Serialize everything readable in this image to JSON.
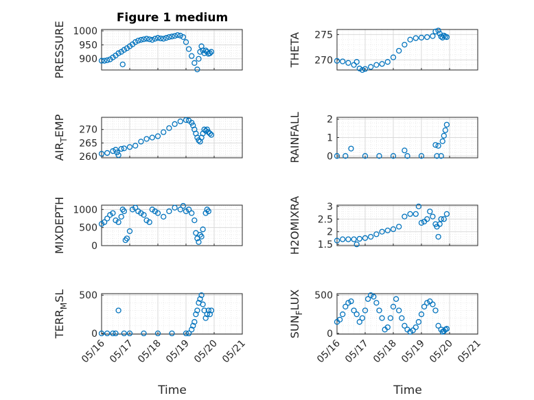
{
  "figure": {
    "title": "Figure 1 medium",
    "marker_color": "#0072bd",
    "x_ticks": [
      "05/16",
      "05/17",
      "05/18",
      "05/19",
      "05/20",
      "05/21"
    ],
    "x_label": "Time"
  },
  "chart_data": [
    {
      "type": "scatter",
      "ylabel": "PRESSURE",
      "title": "Figure 1 medium",
      "xlim": [
        0,
        5
      ],
      "ylim": [
        860,
        1005
      ],
      "yticks": [
        900,
        950,
        1000
      ],
      "grid": true,
      "series": [
        {
          "x": [
            0.0,
            0.1,
            0.2,
            0.3,
            0.4,
            0.5,
            0.6,
            0.7,
            0.75,
            0.8,
            0.9,
            1.0,
            1.1,
            1.2,
            1.3,
            1.4,
            1.5,
            1.6,
            1.7,
            1.8,
            1.9,
            2.0,
            2.1,
            2.2,
            2.3,
            2.4,
            2.5,
            2.6,
            2.7,
            2.8,
            2.9,
            3.0,
            3.1,
            3.2,
            3.3,
            3.4,
            3.45,
            3.5,
            3.55,
            3.6,
            3.65,
            3.7,
            3.75,
            3.8,
            3.85,
            3.9
          ],
          "y": [
            893,
            893,
            895,
            898,
            905,
            912,
            920,
            925,
            880,
            932,
            938,
            945,
            952,
            960,
            965,
            968,
            970,
            972,
            970,
            968,
            972,
            975,
            973,
            972,
            975,
            978,
            980,
            982,
            985,
            983,
            978,
            960,
            935,
            910,
            885,
            862,
            900,
            925,
            945,
            930,
            920,
            930,
            925,
            918,
            920,
            925
          ]
        }
      ]
    },
    {
      "type": "scatter",
      "ylabel": "THETA",
      "xlim": [
        0,
        5
      ],
      "ylim": [
        268,
        276
      ],
      "yticks": [
        270,
        275
      ],
      "grid": true,
      "series": [
        {
          "x": [
            0.0,
            0.2,
            0.4,
            0.6,
            0.7,
            0.8,
            0.9,
            1.0,
            1.2,
            1.4,
            1.6,
            1.8,
            2.0,
            2.2,
            2.4,
            2.6,
            2.8,
            3.0,
            3.2,
            3.4,
            3.5,
            3.6,
            3.65,
            3.7,
            3.75,
            3.8,
            3.85,
            3.9
          ],
          "y": [
            269.8,
            269.7,
            269.4,
            269.0,
            269.6,
            268.3,
            268.0,
            268.2,
            268.6,
            269.0,
            269.2,
            269.6,
            270.5,
            271.8,
            273.0,
            274.0,
            274.3,
            274.4,
            274.5,
            274.7,
            275.6,
            275.8,
            275.2,
            274.6,
            274.4,
            274.8,
            274.6,
            274.5
          ]
        }
      ]
    },
    {
      "type": "scatter",
      "ylabel": "AIR_TEMP",
      "xlim": [
        0,
        5
      ],
      "ylim": [
        259.5,
        274.5
      ],
      "yticks": [
        260,
        265,
        270
      ],
      "grid": true,
      "series": [
        {
          "x": [
            0.0,
            0.2,
            0.4,
            0.5,
            0.55,
            0.6,
            0.7,
            0.8,
            1.0,
            1.2,
            1.4,
            1.6,
            1.8,
            2.0,
            2.2,
            2.4,
            2.6,
            2.8,
            3.0,
            3.1,
            3.2,
            3.25,
            3.3,
            3.35,
            3.4,
            3.45,
            3.5,
            3.55,
            3.6,
            3.65,
            3.7,
            3.75,
            3.8,
            3.85,
            3.9
          ],
          "y": [
            261.0,
            261.3,
            262.0,
            262.5,
            261.5,
            260.5,
            262.8,
            263.0,
            263.5,
            264.0,
            265.5,
            266.5,
            267.0,
            267.5,
            269.0,
            270.5,
            272.0,
            273.0,
            273.5,
            273.3,
            272.5,
            271.5,
            270.0,
            268.5,
            267.0,
            266.0,
            265.5,
            267.0,
            268.5,
            270.0,
            269.5,
            270.0,
            269.0,
            268.5,
            268.0
          ]
        }
      ]
    },
    {
      "type": "scatter",
      "ylabel": "RAINFALL",
      "xlim": [
        0,
        5
      ],
      "ylim": [
        -0.1,
        2.1
      ],
      "yticks": [
        0,
        1,
        2
      ],
      "grid": true,
      "series": [
        {
          "x": [
            0.0,
            0.3,
            0.5,
            1.0,
            1.5,
            2.0,
            2.4,
            2.5,
            3.0,
            3.5,
            3.55,
            3.6,
            3.7,
            3.75,
            3.8,
            3.85,
            3.9
          ],
          "y": [
            0.0,
            0.0,
            0.4,
            0.0,
            0.0,
            0.0,
            0.3,
            0.0,
            0.0,
            0.6,
            0.0,
            0.55,
            0.0,
            0.8,
            1.1,
            1.4,
            1.7
          ]
        }
      ]
    },
    {
      "type": "scatter",
      "ylabel": "MIXDEPTH",
      "xlim": [
        0,
        5
      ],
      "ylim": [
        0,
        1120
      ],
      "yticks": [
        0,
        500,
        1000
      ],
      "grid": true,
      "series": [
        {
          "x": [
            0.0,
            0.1,
            0.2,
            0.3,
            0.4,
            0.5,
            0.6,
            0.7,
            0.75,
            0.8,
            0.85,
            0.9,
            1.0,
            1.1,
            1.2,
            1.3,
            1.4,
            1.5,
            1.6,
            1.7,
            1.8,
            1.9,
            2.0,
            2.2,
            2.4,
            2.6,
            2.8,
            2.9,
            3.0,
            3.1,
            3.2,
            3.3,
            3.35,
            3.4,
            3.45,
            3.5,
            3.55,
            3.6,
            3.7,
            3.75,
            3.8
          ],
          "y": [
            600,
            650,
            750,
            850,
            900,
            700,
            650,
            800,
            1000,
            950,
            150,
            200,
            400,
            1000,
            1050,
            950,
            900,
            850,
            700,
            650,
            1000,
            950,
            900,
            800,
            950,
            1050,
            1000,
            1100,
            950,
            1000,
            900,
            700,
            350,
            200,
            100,
            300,
            250,
            450,
            900,
            1000,
            950
          ]
        }
      ]
    },
    {
      "type": "scatter",
      "ylabel": "H2OMIXRA",
      "xlim": [
        0,
        5
      ],
      "ylim": [
        1.45,
        3.05
      ],
      "yticks": [
        1.5,
        2,
        2.5,
        3
      ],
      "grid": true,
      "series": [
        {
          "x": [
            0.0,
            0.2,
            0.4,
            0.6,
            0.7,
            0.8,
            1.0,
            1.2,
            1.4,
            1.6,
            1.8,
            2.0,
            2.2,
            2.4,
            2.6,
            2.8,
            2.9,
            3.0,
            3.1,
            3.2,
            3.3,
            3.4,
            3.5,
            3.55,
            3.6,
            3.65,
            3.7,
            3.8,
            3.9
          ],
          "y": [
            1.65,
            1.7,
            1.7,
            1.7,
            1.5,
            1.72,
            1.75,
            1.8,
            1.9,
            2.0,
            2.05,
            2.1,
            2.2,
            2.6,
            2.7,
            2.7,
            3.0,
            2.35,
            2.4,
            2.5,
            2.8,
            2.6,
            2.3,
            2.2,
            1.8,
            2.3,
            2.5,
            2.5,
            2.7
          ]
        }
      ]
    },
    {
      "type": "scatter",
      "ylabel": "TERR_MSL",
      "xlim": [
        0,
        5
      ],
      "ylim": [
        -10,
        520
      ],
      "yticks": [
        0,
        500
      ],
      "grid": true,
      "series": [
        {
          "x": [
            0.0,
            0.2,
            0.4,
            0.5,
            0.6,
            0.8,
            1.0,
            1.5,
            2.0,
            2.5,
            3.0,
            3.1,
            3.2,
            3.25,
            3.3,
            3.35,
            3.4,
            3.45,
            3.5,
            3.55,
            3.6,
            3.65,
            3.7,
            3.75,
            3.8,
            3.85,
            3.9
          ],
          "y": [
            0,
            0,
            0,
            0,
            300,
            0,
            0,
            0,
            0,
            0,
            0,
            0,
            50,
            100,
            150,
            250,
            300,
            400,
            450,
            500,
            380,
            300,
            200,
            250,
            300,
            250,
            300
          ]
        }
      ]
    },
    {
      "type": "scatter",
      "ylabel": "SUN_FLUX",
      "xlim": [
        0,
        5
      ],
      "ylim": [
        -10,
        520
      ],
      "yticks": [
        0,
        500
      ],
      "grid": true,
      "series": [
        {
          "x": [
            0.0,
            0.1,
            0.2,
            0.3,
            0.4,
            0.5,
            0.6,
            0.7,
            0.8,
            0.9,
            1.0,
            1.1,
            1.2,
            1.3,
            1.4,
            1.5,
            1.6,
            1.7,
            1.8,
            1.9,
            2.0,
            2.1,
            2.2,
            2.3,
            2.4,
            2.5,
            2.6,
            2.7,
            2.8,
            2.9,
            3.0,
            3.1,
            3.2,
            3.3,
            3.4,
            3.5,
            3.6,
            3.7,
            3.75,
            3.8,
            3.85,
            3.9
          ],
          "y": [
            150,
            180,
            250,
            350,
            400,
            420,
            300,
            250,
            150,
            200,
            300,
            450,
            500,
            480,
            400,
            300,
            200,
            50,
            80,
            200,
            350,
            450,
            300,
            200,
            100,
            50,
            20,
            40,
            80,
            150,
            250,
            350,
            400,
            420,
            380,
            300,
            100,
            50,
            20,
            30,
            50,
            60
          ]
        }
      ]
    }
  ]
}
